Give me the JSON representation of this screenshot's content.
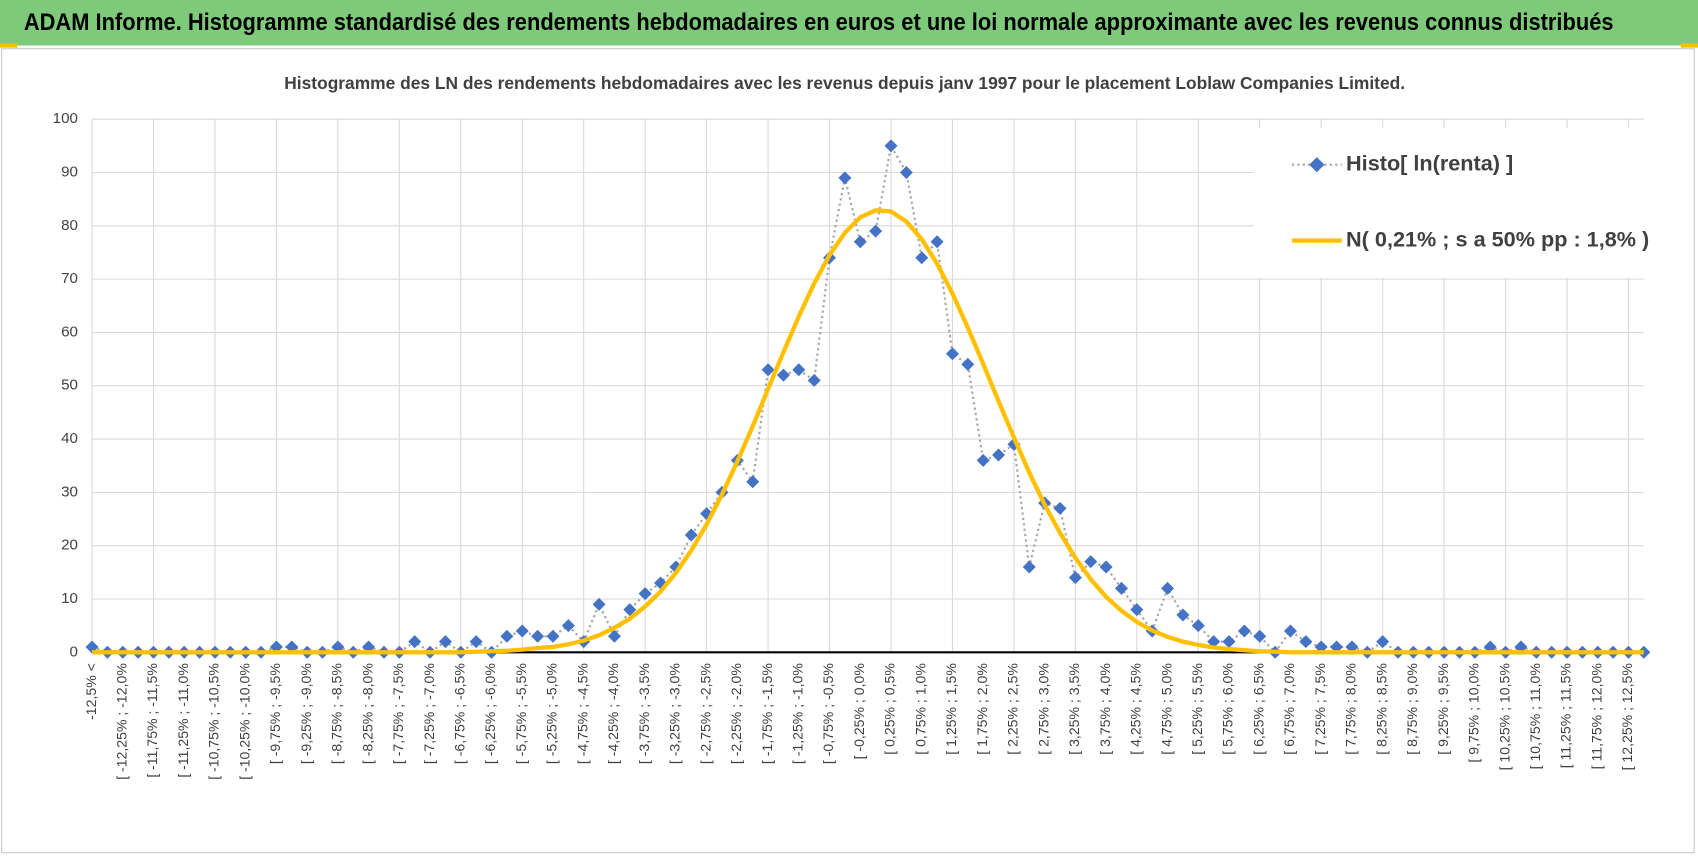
{
  "chart_data": {
    "type": "line",
    "title": "ADAM Informe. Histogramme standardisé des rendements hebdomadaires en euros et une loi normale approximante avec les revenus connus distribués",
    "subtitle": "Histogramme  des LN des rendements hebdomadaires avec les revenus depuis janv 1997 pour le placement Loblaw Companies Limited.",
    "categories": [
      "-12,5% <",
      null,
      "[ -12,25% ; -12,0%",
      null,
      "[ -11,75% ; -11,5%",
      null,
      "[ -11,25% ; -11,0%",
      null,
      "[ -10,75% ; -10,5%",
      null,
      "[ -10,25% ; -10,0%",
      null,
      "[ -9,75% ; -9,5%",
      null,
      "[ -9,25% ; -9,0%",
      null,
      "[ -8,75% ; -8,5%",
      null,
      "[ -8,25% ; -8,0%",
      null,
      "[ -7,75% ; -7,5%",
      null,
      "[ -7,25% ; -7,0%",
      null,
      "[ -6,75% ; -6,5%",
      null,
      "[ -6,25% ; -6,0%",
      null,
      "[ -5,75% ; -5,5%",
      null,
      "[ -5,25% ; -5,0%",
      null,
      "[ -4,75% ; -4,5%",
      null,
      "[ -4,25% ; -4,0%",
      null,
      "[ -3,75% ; -3,5%",
      null,
      "[ -3,25% ; -3,0%",
      null,
      "[ -2,75% ; -2,5%",
      null,
      "[ -2,25% ; -2,0%",
      null,
      "[ -1,75% ; -1,5%",
      null,
      "[ -1,25% ; -1,0%",
      null,
      "[ -0,75% ; -0,5%",
      null,
      "[ -0,25% ; 0,0%",
      null,
      "[ 0,25% ; 0,5%",
      null,
      "[ 0,75% ; 1,0%",
      null,
      "[ 1,25% ; 1,5%",
      null,
      "[ 1,75% ; 2,0%",
      null,
      "[ 2,25% ; 2,5%",
      null,
      "[ 2,75% ; 3,0%",
      null,
      "[ 3,25% ; 3,5%",
      null,
      "[ 3,75% ; 4,0%",
      null,
      "[ 4,25% ; 4,5%",
      null,
      "[ 4,75% ; 5,0%",
      null,
      "[ 5,25% ; 5,5%",
      null,
      "[ 5,75% ; 6,0%",
      null,
      "[ 6,25% ; 6,5%",
      null,
      "[ 6,75% ; 7,0%",
      null,
      "[ 7,25% ; 7,5%",
      null,
      "[ 7,75% ; 8,0%",
      null,
      "[ 8,25% ; 8,5%",
      null,
      "[ 8,75% ; 9,0%",
      null,
      "[ 9,25% ; 9,5%",
      null,
      "[ 9,75% ; 10,0%",
      null,
      "[ 10,25% ; 10,5%",
      null,
      "[ 10,75% ; 11,0%",
      null,
      "[ 11,25% ; 11,5%",
      null,
      "[ 11,75% ; 12,0%",
      null,
      "[ 12,25% ; 12,5%",
      null
    ],
    "series": [
      {
        "name": "Histo[ ln(renta) ]",
        "color": "#4472c4",
        "line_color": "#a5a5a5",
        "marker": "diamond",
        "values": [
          1,
          0,
          0,
          0,
          0,
          0,
          0,
          0,
          0,
          0,
          0,
          0,
          1,
          1,
          0,
          0,
          1,
          0,
          1,
          0,
          0,
          2,
          0,
          2,
          0,
          2,
          0,
          3,
          4,
          3,
          3,
          5,
          2,
          9,
          3,
          8,
          11,
          13,
          16,
          22,
          26,
          30,
          36,
          32,
          53,
          52,
          53,
          51,
          74,
          89,
          77,
          79,
          95,
          90,
          74,
          77,
          56,
          54,
          36,
          37,
          39,
          16,
          28,
          27,
          14,
          17,
          16,
          12,
          8,
          4,
          12,
          7,
          5,
          2,
          2,
          4,
          3,
          0,
          4,
          2,
          1,
          1,
          1,
          0,
          2,
          0,
          0,
          0,
          0,
          0,
          0,
          1,
          0,
          1,
          0,
          0,
          0,
          0,
          0,
          0,
          0,
          0
        ]
      },
      {
        "name": "N( 0,21% ; s a 50% pp : 1,8% )",
        "color": "#ffc000",
        "marker": "none",
        "values": [
          0,
          0,
          0,
          0,
          0,
          0,
          0,
          0,
          0,
          0,
          0,
          0,
          0,
          0,
          0,
          0,
          0,
          0,
          0,
          0,
          0,
          0,
          0,
          0,
          0,
          0.1,
          0.2,
          0.3,
          0.5,
          0.8,
          1,
          1.5,
          2.2,
          3.2,
          4.6,
          6.3,
          8.6,
          11.4,
          14.9,
          19.1,
          24,
          29.6,
          35.8,
          42.4,
          49.4,
          56.3,
          63,
          69.2,
          74.5,
          78.7,
          81.6,
          82.9,
          82.7,
          80.8,
          77.5,
          72.9,
          67.3,
          60.9,
          54.1,
          47.1,
          40.3,
          33.7,
          27.7,
          22.4,
          17.7,
          13.7,
          10.4,
          7.8,
          5.7,
          4.1,
          2.9,
          2,
          1.4,
          0.9,
          0.6,
          0.4,
          0.2,
          0.1,
          0,
          0,
          0,
          0,
          0,
          0,
          0,
          0,
          0,
          0,
          0,
          0,
          0,
          0,
          0,
          0,
          0,
          0,
          0,
          0,
          0,
          0,
          0,
          0
        ]
      }
    ],
    "ylim": [
      0,
      100
    ],
    "yticks": [
      0,
      10,
      20,
      30,
      40,
      50,
      60,
      70,
      80,
      90,
      100
    ],
    "grid": true,
    "legend": "top-right"
  }
}
